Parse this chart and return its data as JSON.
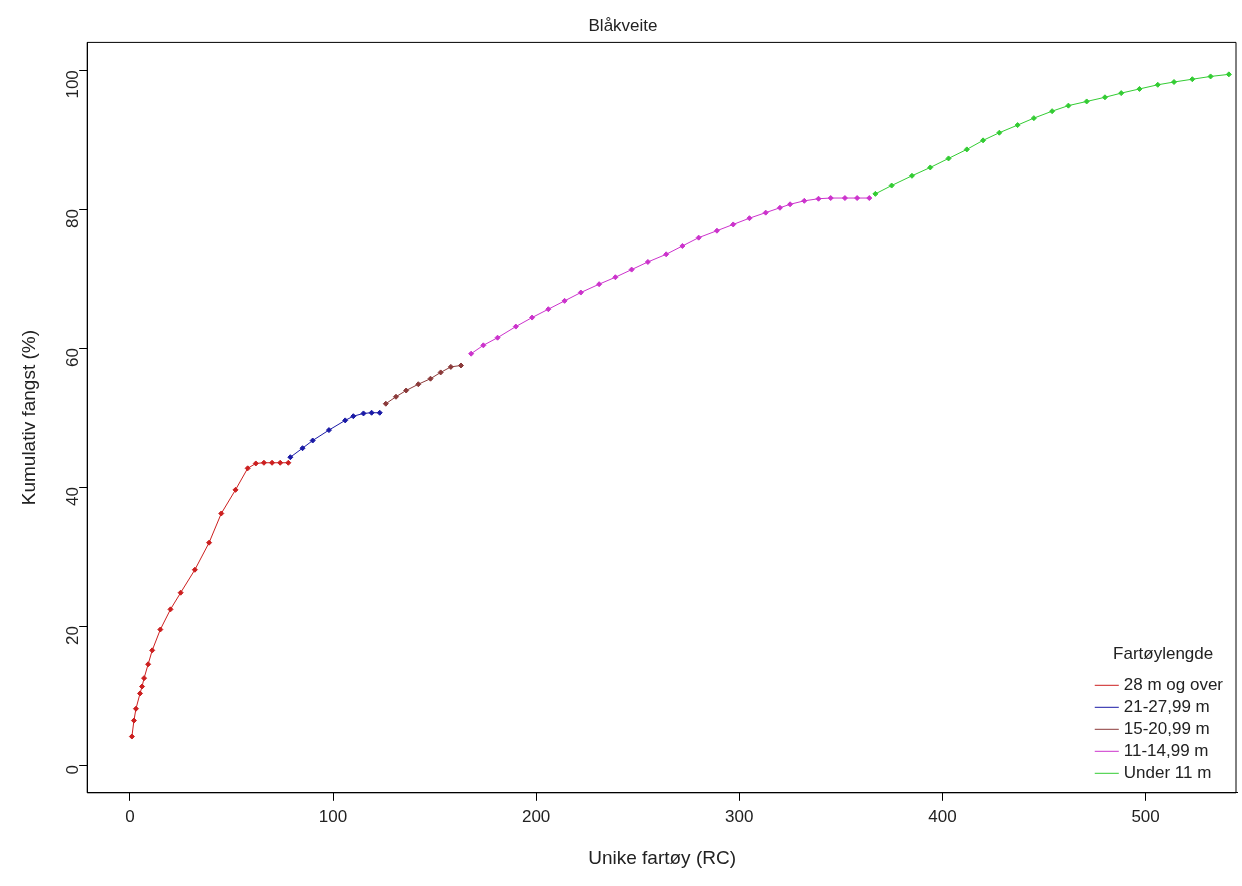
{
  "chart_data": {
    "type": "line",
    "title": "Blåkveite",
    "xlabel": "Unike fartøy (RC)",
    "ylabel": "Kumulativ fangst (%)",
    "legend_title": "Fartøylengde",
    "legend": "bottom right",
    "marker": "diamond",
    "grid": false,
    "xlim": [
      -21,
      545
    ],
    "xticks": [
      0,
      100,
      200,
      300,
      400,
      500
    ],
    "ylim": [
      -4,
      104
    ],
    "yticks": [
      0,
      20,
      40,
      60,
      80,
      100
    ],
    "series": [
      {
        "name": "28 m og over",
        "color": "#cc1f1f",
        "x": [
          1,
          2,
          3,
          5,
          6,
          7,
          9,
          11,
          15,
          20,
          25,
          32,
          39,
          45,
          52,
          58,
          62,
          66,
          70,
          74,
          78
        ],
        "values": [
          4.1,
          6.4,
          8.1,
          10.3,
          11.3,
          12.5,
          14.5,
          16.5,
          19.5,
          22.4,
          24.8,
          28.1,
          32,
          36.2,
          39.6,
          42.7,
          43.4,
          43.5,
          43.5,
          43.5,
          43.5
        ]
      },
      {
        "name": "21-27,99 m",
        "color": "#1a1aa6",
        "x": [
          79,
          85,
          90,
          98,
          106,
          110,
          115,
          119,
          123
        ],
        "values": [
          44.3,
          45.6,
          46.7,
          48.2,
          49.6,
          50.2,
          50.6,
          50.7,
          50.7
        ]
      },
      {
        "name": "15-20,99 m",
        "color": "#8b3a3a",
        "x": [
          126,
          131,
          136,
          142,
          148,
          153,
          158,
          163
        ],
        "values": [
          52,
          53,
          53.9,
          54.8,
          55.6,
          56.5,
          57.3,
          57.5
        ]
      },
      {
        "name": "11-14,99 m",
        "color": "#cc33cc",
        "x": [
          168,
          174,
          181,
          190,
          198,
          206,
          214,
          222,
          231,
          239,
          247,
          255,
          264,
          272,
          280,
          289,
          297,
          305,
          313,
          320,
          325,
          332,
          339,
          345,
          352,
          358,
          364
        ],
        "values": [
          59.2,
          60.4,
          61.5,
          63.1,
          64.4,
          65.6,
          66.8,
          68,
          69.2,
          70.2,
          71.3,
          72.4,
          73.5,
          74.7,
          75.9,
          76.9,
          77.8,
          78.7,
          79.5,
          80.2,
          80.7,
          81.2,
          81.5,
          81.6,
          81.6,
          81.6,
          81.6
        ]
      },
      {
        "name": "Under 11 m",
        "color": "#33cc33",
        "x": [
          367,
          375,
          385,
          394,
          403,
          412,
          420,
          428,
          437,
          445,
          454,
          462,
          471,
          480,
          488,
          497,
          506,
          514,
          523,
          532,
          541
        ],
        "values": [
          82.2,
          83.4,
          84.8,
          86,
          87.3,
          88.6,
          89.9,
          91,
          92.1,
          93.1,
          94.1,
          94.9,
          95.5,
          96.1,
          96.7,
          97.3,
          97.9,
          98.3,
          98.7,
          99.1,
          99.4
        ]
      }
    ]
  }
}
